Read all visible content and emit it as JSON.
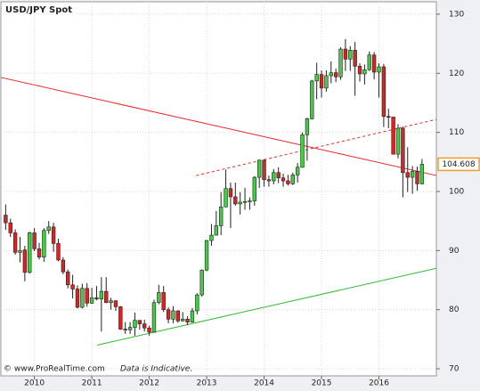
{
  "chart_data": {
    "type": "candlestick",
    "title": "USD/JPY Spot",
    "footer": "© www.ProRealTime.com",
    "note": "Data is Indicative.",
    "up_color": "#44cc44",
    "down_color": "#dd2222",
    "grid": true,
    "xlim": [
      -1,
      90
    ],
    "ylim": [
      68.8,
      132.1
    ],
    "yticks": [
      70,
      80,
      90,
      100,
      110,
      120,
      130
    ],
    "xticks": [
      {
        "value": 6,
        "label": "2010"
      },
      {
        "value": 18,
        "label": "2011"
      },
      {
        "value": 30,
        "label": "2012"
      },
      {
        "value": 42,
        "label": "2013"
      },
      {
        "value": 54,
        "label": "2014"
      },
      {
        "value": 66,
        "label": "2015"
      },
      {
        "value": 78,
        "label": "2016"
      }
    ],
    "open": [
      96.0,
      94.7,
      93.0,
      89.7,
      90.1,
      86.3,
      93.0,
      90.3,
      88.9,
      93.4,
      94.0,
      91.2,
      88.4,
      86.4,
      84.2,
      83.5,
      80.4,
      83.6,
      81.1,
      82.0,
      81.8,
      83.1,
      81.2,
      81.5,
      80.5,
      76.7,
      76.6,
      77.0,
      78.2,
      77.6,
      76.9,
      76.2,
      81.2,
      82.9,
      80.0,
      78.4,
      79.8,
      78.1,
      78.4,
      77.9,
      79.8,
      82.5,
      86.7,
      91.7,
      92.6,
      94.2,
      97.4,
      100.5,
      99.1,
      97.9,
      98.2,
      98.3,
      98.4,
      102.4,
      105.3,
      102.0,
      101.8,
      103.2,
      102.3,
      101.8,
      101.3,
      102.8,
      104.1,
      109.6,
      112.3,
      118.7,
      119.8,
      117.5,
      119.6,
      120.1,
      119.4,
      124.1,
      122.4,
      123.9,
      121.2,
      119.9,
      120.6,
      123.1,
      120.2,
      121.1,
      112.7,
      112.6,
      106.3,
      110.7,
      103.2,
      102.4,
      103.4,
      101.3
    ],
    "high": [
      97.8,
      95.4,
      93.6,
      92.3,
      90.8,
      93.2,
      93.8,
      91.3,
      93.8,
      95.0,
      94.7,
      92.0,
      88.9,
      86.8,
      85.9,
      84.1,
      84.4,
      84.5,
      83.7,
      84.0,
      85.5,
      85.5,
      82.0,
      81.6,
      80.6,
      77.9,
      77.9,
      79.5,
      78.2,
      78.3,
      77.3,
      81.7,
      84.2,
      84.0,
      80.4,
      80.6,
      79.9,
      79.6,
      78.9,
      80.3,
      82.8,
      86.8,
      91.8,
      94.5,
      96.7,
      99.9,
      103.7,
      101.5,
      101.5,
      99.9,
      100.6,
      99.0,
      102.6,
      105.4,
      105.4,
      102.7,
      103.8,
      104.1,
      103.0,
      102.8,
      103.2,
      104.8,
      110.0,
      112.5,
      118.9,
      121.8,
      120.5,
      120.5,
      122.0,
      120.8,
      124.4,
      125.8,
      124.6,
      125.3,
      121.7,
      121.5,
      123.7,
      123.6,
      121.7,
      121.6,
      114.0,
      112.0,
      111.4,
      111.0,
      107.5,
      104.3,
      104.2,
      105.5
    ],
    "low": [
      93.5,
      92.3,
      89.3,
      88.0,
      84.8,
      86.1,
      89.9,
      88.5,
      88.1,
      92.8,
      89.8,
      88.2,
      86.0,
      83.6,
      81.9,
      80.2,
      80.2,
      80.5,
      81.0,
      81.6,
      76.3,
      81.1,
      80.0,
      79.8,
      76.6,
      75.9,
      75.9,
      75.6,
      76.6,
      76.3,
      75.6,
      76.1,
      80.9,
      79.6,
      77.7,
      77.7,
      77.8,
      78.0,
      77.4,
      77.8,
      79.2,
      82.2,
      86.5,
      90.8,
      92.6,
      92.6,
      97.3,
      93.8,
      97.6,
      96.1,
      96.9,
      96.9,
      97.6,
      100.6,
      100.8,
      100.8,
      101.2,
      101.4,
      100.8,
      101.0,
      101.1,
      101.5,
      104.0,
      105.2,
      112.2,
      115.6,
      115.9,
      116.9,
      118.3,
      118.5,
      118.9,
      120.4,
      120.4,
      116.2,
      118.6,
      118.1,
      120.4,
      119.0,
      115.9,
      110.9,
      110.7,
      106.3,
      105.6,
      99.0,
      99.9,
      99.6,
      100.1,
      101.2
    ],
    "close": [
      94.7,
      93.0,
      89.7,
      90.0,
      86.3,
      93.0,
      90.3,
      88.9,
      93.4,
      94.0,
      91.2,
      88.4,
      86.4,
      84.2,
      83.5,
      80.4,
      83.6,
      81.1,
      82.0,
      81.8,
      83.1,
      81.2,
      81.5,
      80.5,
      76.7,
      76.6,
      77.0,
      78.2,
      77.6,
      76.9,
      76.2,
      81.2,
      82.9,
      80.0,
      78.4,
      79.8,
      78.1,
      78.4,
      77.9,
      79.8,
      82.5,
      86.7,
      91.7,
      92.6,
      94.2,
      97.4,
      100.5,
      99.1,
      97.9,
      98.2,
      98.3,
      98.4,
      102.4,
      105.3,
      102.0,
      101.8,
      103.2,
      102.3,
      101.8,
      101.3,
      102.8,
      104.1,
      109.6,
      112.3,
      118.7,
      119.8,
      117.5,
      119.6,
      120.1,
      119.4,
      124.1,
      122.4,
      123.9,
      121.2,
      119.9,
      120.6,
      123.1,
      120.2,
      121.1,
      112.7,
      112.6,
      106.3,
      110.7,
      103.2,
      102.4,
      103.4,
      101.3,
      104.608
    ],
    "trend_lines": [
      {
        "color": "#ee2222",
        "dashed": false,
        "x": [
          -1,
          90
        ],
        "y": [
          119.3,
          102.7
        ]
      },
      {
        "color": "#ee2222",
        "dashed": true,
        "x": [
          39.8,
          90
        ],
        "y": [
          102.7,
          112.2
        ]
      },
      {
        "color": "#33bb33",
        "dashed": false,
        "x": [
          19.1,
          90
        ],
        "y": [
          74.0,
          87.0
        ]
      }
    ]
  }
}
